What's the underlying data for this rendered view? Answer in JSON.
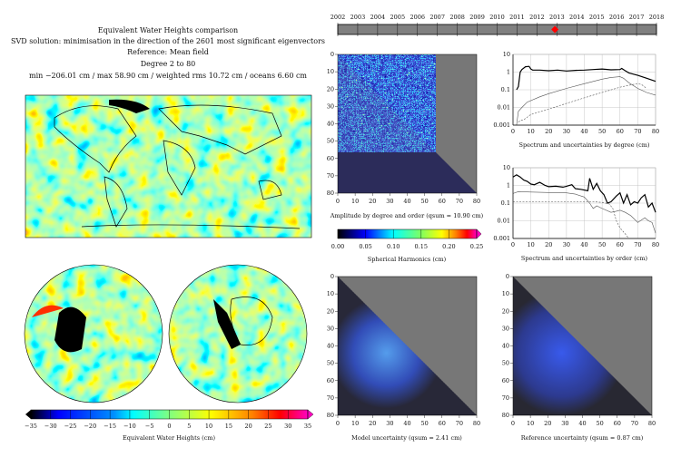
{
  "header": {
    "title": "Equivalent Water Heights comparison",
    "line2": "SVD solution: minimisation in the direction of the 2601 most significant eigenvectors",
    "line3": "Reference: Mean field",
    "line4": "Degree 2 to 80",
    "line5": "min −206.01 cm / max 58.90 cm / weighted rms 10.72 cm / oceans 6.60 cm"
  },
  "timeline": {
    "years": [
      "2002",
      "2003",
      "2004",
      "2005",
      "2006",
      "2007",
      "2008",
      "2009",
      "2010",
      "2011",
      "2012",
      "2013",
      "2014",
      "2015",
      "2016",
      "2017",
      "2018"
    ],
    "selected": 2012.9,
    "marker_color": "#ff0000"
  },
  "ewh_colorbar": {
    "ticks": [
      "−35",
      "−30",
      "−25",
      "−20",
      "−15",
      "−10",
      "−5",
      "0",
      "5",
      "10",
      "15",
      "20",
      "25",
      "30",
      "35"
    ],
    "label": "Equivalent Water Heights (cm)",
    "range": [
      -35,
      35
    ]
  },
  "sh_colorbar": {
    "ticks": [
      "0.00",
      "0.05",
      "0.10",
      "0.15",
      "0.20",
      "0.25"
    ],
    "label": "Spherical Harmonics (cm)",
    "range": [
      0,
      0.25
    ]
  },
  "matrix_ticks": [
    "0",
    "10",
    "20",
    "30",
    "40",
    "50",
    "60",
    "70",
    "80"
  ],
  "amplitude": {
    "caption": "Amplitude by degree and order (qsum = 10.90 cm)"
  },
  "model_unc": {
    "caption": "Model uncertainty (qsum = 2.41 cm)"
  },
  "ref_unc": {
    "caption": "Reference uncertainty (qsum = 0.87 cm)"
  },
  "chart_data": [
    {
      "type": "line",
      "title": "Spectrum and uncertainties by degree (cm)",
      "xlim": [
        0,
        80
      ],
      "ylim": [
        0.001,
        10
      ],
      "yscale": "log",
      "yticks": [
        "10",
        "1",
        "0.1",
        "0.01",
        "0.001"
      ],
      "xticks": [
        "0",
        "10",
        "20",
        "30",
        "40",
        "50",
        "60",
        "70",
        "80"
      ],
      "grid": true,
      "series": [
        {
          "style": "solid-black",
          "x": [
            2,
            3,
            4,
            5,
            7,
            9,
            10,
            11,
            15,
            20,
            25,
            30,
            35,
            40,
            45,
            50,
            55,
            60,
            61,
            63,
            65,
            70,
            75,
            80
          ],
          "y": [
            0.1,
            0.15,
            1.0,
            1.4,
            2.0,
            2.1,
            1.5,
            1.3,
            1.3,
            1.2,
            1.3,
            1.15,
            1.25,
            1.3,
            1.4,
            1.5,
            1.35,
            1.4,
            1.6,
            1.2,
            0.9,
            0.65,
            0.45,
            0.3
          ]
        },
        {
          "style": "solid-gray",
          "x": [
            2,
            3,
            5,
            8,
            15,
            20,
            30,
            40,
            50,
            55,
            60,
            62,
            65,
            70,
            75,
            80
          ],
          "y": [
            0.001,
            0.006,
            0.01,
            0.02,
            0.04,
            0.06,
            0.12,
            0.22,
            0.4,
            0.5,
            0.55,
            0.45,
            0.25,
            0.12,
            0.07,
            0.05
          ]
        },
        {
          "style": "dashed-gray",
          "x": [
            3,
            4,
            6,
            10,
            20,
            30,
            40,
            50,
            60,
            65,
            70,
            72,
            75
          ],
          "y": [
            0.0015,
            0.0018,
            0.002,
            0.004,
            0.008,
            0.017,
            0.035,
            0.07,
            0.14,
            0.18,
            0.22,
            0.2,
            0.12
          ]
        }
      ]
    },
    {
      "type": "line",
      "title": "Spectrum and uncertainties by order (cm)",
      "xlim": [
        0,
        80
      ],
      "ylim": [
        0.001,
        10
      ],
      "yscale": "log",
      "yticks": [
        "10",
        "1",
        "0.1",
        "0.01",
        "0.001"
      ],
      "xticks": [
        "0",
        "10",
        "20",
        "30",
        "40",
        "50",
        "60",
        "70",
        "80"
      ],
      "grid": true,
      "series": [
        {
          "style": "solid-black",
          "x": [
            0,
            2,
            4,
            6,
            8,
            10,
            12,
            15,
            18,
            20,
            24,
            28,
            30,
            33,
            35,
            38,
            42,
            43,
            45,
            47,
            49,
            51,
            53,
            55,
            58,
            60,
            62,
            64,
            66,
            68,
            70,
            72,
            74,
            76,
            78,
            80
          ],
          "y": [
            3,
            4,
            3,
            2,
            1.7,
            1.2,
            1.1,
            1.5,
            1.0,
            0.85,
            0.9,
            0.8,
            0.9,
            1.1,
            0.65,
            0.6,
            0.5,
            2.5,
            0.6,
            1.3,
            0.5,
            0.3,
            0.1,
            0.12,
            0.25,
            0.38,
            0.1,
            0.3,
            0.08,
            0.12,
            0.1,
            0.2,
            0.3,
            0.06,
            0.1,
            0.03
          ]
        },
        {
          "style": "solid-gray",
          "x": [
            0,
            3,
            10,
            20,
            30,
            35,
            40,
            43,
            45,
            47,
            50,
            55,
            58,
            60,
            63,
            66,
            70,
            74,
            76,
            78,
            80
          ],
          "y": [
            0.35,
            0.45,
            0.42,
            0.4,
            0.38,
            0.32,
            0.22,
            0.1,
            0.05,
            0.07,
            0.05,
            0.03,
            0.035,
            0.04,
            0.03,
            0.02,
            0.008,
            0.015,
            0.01,
            0.008,
            0.002
          ]
        },
        {
          "style": "dashed-gray",
          "x": [
            0,
            10,
            20,
            30,
            40,
            45,
            50,
            54,
            56,
            58,
            60,
            63,
            65
          ],
          "y": [
            0.12,
            0.12,
            0.12,
            0.12,
            0.12,
            0.12,
            0.11,
            0.09,
            0.05,
            0.01,
            0.004,
            0.0018,
            0.001
          ]
        }
      ]
    }
  ]
}
